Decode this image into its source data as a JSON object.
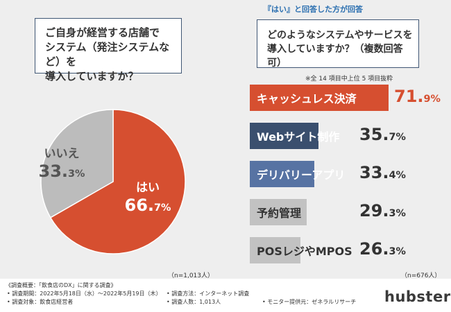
{
  "header_note": "『はい』と回答した方が回答",
  "left_question": "ご自身が経営する店舗で\nシステム（発注システムなど）を\n導入していますか？",
  "right_question": "どのようなシステムやサービスを\n導入していますか？（複数回答可）",
  "sub_note": "※全 14 項目中上位 5 項目抜粋",
  "n_left": "（n=1,013人）",
  "n_right": "（n=676人）",
  "pie": {
    "yes_label": "はい",
    "yes_value_int": "66.",
    "yes_value_dec": "7%",
    "no_label": "いいえ",
    "no_value_int": "33.",
    "no_value_dec": "3%"
  },
  "chart_data": [
    {
      "type": "pie",
      "categories": [
        "はい",
        "いいえ"
      ],
      "values": [
        66.7,
        33.3
      ],
      "unit": "%",
      "colors": [
        "#d64f30",
        "#bcbcbc"
      ]
    },
    {
      "type": "bar",
      "categories": [
        "キャッシュレス決済",
        "Webサイト制作",
        "デリバリーアプリ",
        "予約管理",
        "POSレジやMPOS"
      ],
      "values": [
        71.9,
        35.7,
        33.4,
        29.3,
        26.3
      ],
      "unit": "%",
      "colors": [
        "#d64f30",
        "#3a4f6e",
        "#5773a3",
        "#c2c2c2",
        "#c2c2c2"
      ]
    }
  ],
  "bars": [
    {
      "label": "キャッシュレス決済",
      "int": "71.",
      "dec": "9%"
    },
    {
      "label": "Webサイト制作",
      "int": "35.",
      "dec": "7%"
    },
    {
      "label": "デリバリーアプリ",
      "int": "33.",
      "dec": "4%"
    },
    {
      "label": "予約管理",
      "int": "29.",
      "dec": "3%"
    },
    {
      "label": "POSレジやMPOS",
      "int": "26.",
      "dec": "3%"
    }
  ],
  "footer": {
    "title": "《調査概要：「飲食店のDX」に関する調査》",
    "period": "• 調査期間：2022年5月18日（水）〜2022年5月19日（木）",
    "target": "• 調査対象：飲食店経営者",
    "method": "• 調査方法：インターネット調査",
    "count": "• 調査人数：1,013人",
    "provider": "• モニター提供元：ゼネラルリサーチ"
  },
  "logo": "hubster"
}
